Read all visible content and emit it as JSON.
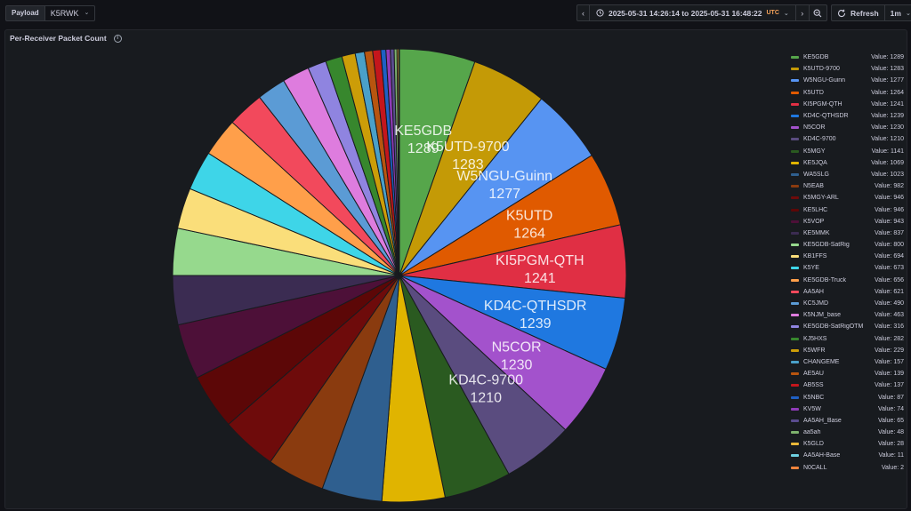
{
  "toolbar": {
    "variable_label": "Payload",
    "variable_value": "K5RWK",
    "time_range": "2025-05-31 14:26:14 to 2025-05-31 16:48:22",
    "timezone": "UTC",
    "refresh_label": "Refresh",
    "refresh_interval": "1m",
    "icons": [
      "chevron-left-icon",
      "clock-icon",
      "chevron-down-icon",
      "chevron-right-icon",
      "zoom-out-icon",
      "refresh-icon"
    ]
  },
  "panel": {
    "title": "Per-Receiver Packet Count",
    "value_prefix": "Value: "
  },
  "chart_data": {
    "type": "pie",
    "title": "Per-Receiver Packet Count",
    "legend_placement": "right",
    "labeled_slices": 8,
    "slices": [
      {
        "name": "KE5GDB",
        "value": 1289,
        "color": "#56a64b"
      },
      {
        "name": "K5UTD-9700",
        "value": 1283,
        "color": "#c49a06"
      },
      {
        "name": "W5NGU-Guinn",
        "value": 1277,
        "color": "#5794f2"
      },
      {
        "name": "K5UTD",
        "value": 1264,
        "color": "#e05a00"
      },
      {
        "name": "KI5PGM-QTH",
        "value": 1241,
        "color": "#e02f44"
      },
      {
        "name": "KD4C-QTHSDR",
        "value": 1239,
        "color": "#1f78e0"
      },
      {
        "name": "N5COR",
        "value": 1230,
        "color": "#a352cc"
      },
      {
        "name": "KD4C-9700",
        "value": 1210,
        "color": "#5a4c7f"
      },
      {
        "name": "K5MGY",
        "value": 1141,
        "color": "#2a5a20"
      },
      {
        "name": "KE5JQA",
        "value": 1069,
        "color": "#e0b400"
      },
      {
        "name": "WA5SLG",
        "value": 1023,
        "color": "#2f5f8f"
      },
      {
        "name": "N5EAB",
        "value": 982,
        "color": "#8a3b0f"
      },
      {
        "name": "K5MGY-ARL",
        "value": 946,
        "color": "#6e0b0b"
      },
      {
        "name": "KE5LHC",
        "value": 946,
        "color": "#5c0707"
      },
      {
        "name": "K5VOP",
        "value": 943,
        "color": "#4d1038"
      },
      {
        "name": "KE5MMK",
        "value": 837,
        "color": "#3b2c52"
      },
      {
        "name": "KE5GDB-SatRig",
        "value": 800,
        "color": "#96d98d"
      },
      {
        "name": "KB1FFS",
        "value": 694,
        "color": "#fade7a"
      },
      {
        "name": "K5YE",
        "value": 673,
        "color": "#3ed5e8"
      },
      {
        "name": "KE5GDB-Truck",
        "value": 656,
        "color": "#ff9f4a"
      },
      {
        "name": "AA5AH",
        "value": 621,
        "color": "#f2495c"
      },
      {
        "name": "KC5JMD",
        "value": 490,
        "color": "#5b9bd5"
      },
      {
        "name": "K5NJM_base",
        "value": 463,
        "color": "#de7cde"
      },
      {
        "name": "KE5GDB-SatRigOTM",
        "value": 316,
        "color": "#8f84e0"
      },
      {
        "name": "KJ5HXS",
        "value": 282,
        "color": "#37872d"
      },
      {
        "name": "K5WFR",
        "value": 229,
        "color": "#cc9d08"
      },
      {
        "name": "CHANGEME",
        "value": 157,
        "color": "#4aa0c8"
      },
      {
        "name": "AE5AU",
        "value": 139,
        "color": "#b8550f"
      },
      {
        "name": "AB5SS",
        "value": 137,
        "color": "#c4161c"
      },
      {
        "name": "K5NBC",
        "value": 87,
        "color": "#1f60c4"
      },
      {
        "name": "KV5W",
        "value": 74,
        "color": "#8f3bb8"
      },
      {
        "name": "AA5AH_Base",
        "value": 65,
        "color": "#5a4c8f"
      },
      {
        "name": "aa5ah",
        "value": 48,
        "color": "#7eb26d"
      },
      {
        "name": "K5GLD",
        "value": 28,
        "color": "#eab839"
      },
      {
        "name": "AA5AH-Base",
        "value": 11,
        "color": "#6ed0e0"
      },
      {
        "name": "N0CALL",
        "value": 2,
        "color": "#ef843c"
      }
    ]
  }
}
